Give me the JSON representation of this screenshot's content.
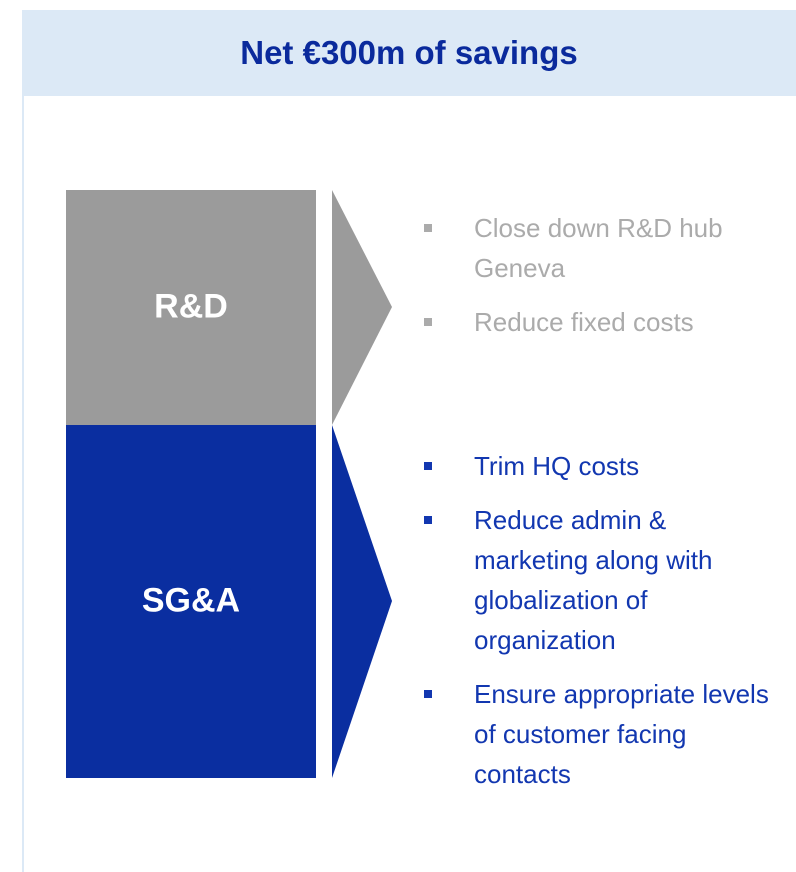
{
  "header": {
    "title": "Net €300m of savings"
  },
  "blocks": [
    {
      "label": "R&D",
      "bullets": [
        "Close down R&D hub Geneva",
        "Reduce fixed costs"
      ]
    },
    {
      "label": "SG&A",
      "bullets": [
        "Trim HQ costs",
        "Reduce admin & marketing along with globalization of organization",
        "Ensure appropriate levels of customer facing contacts"
      ]
    }
  ]
}
